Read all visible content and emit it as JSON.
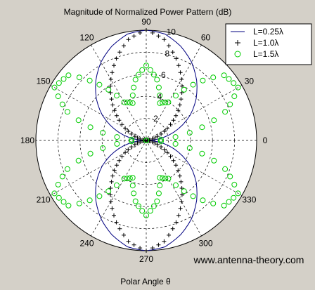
{
  "chart_data": {
    "type": "polar-line",
    "title": "Magnitude of Normalized Power Pattern (dB)",
    "xlabel": "Polar Angle θ",
    "watermark": "www.antenna-theory.com",
    "angle_ticks": [
      "0",
      "30",
      "60",
      "90",
      "120",
      "150",
      "180",
      "210",
      "240",
      "270",
      "300",
      "330"
    ],
    "radial_ticks": [
      "2",
      "4",
      "6",
      "8",
      "10"
    ],
    "rlim": [
      0,
      10
    ],
    "grid": true,
    "legend_position": "top-right",
    "colors": {
      "L025": "#000080",
      "L10": "#000000",
      "L15": "#00cc00",
      "background": "#d4d0c8",
      "plot_bg": "#ffffff"
    },
    "legend": [
      "L=0.25λ",
      "L=1.0λ",
      "L=1.5λ"
    ],
    "series": [
      {
        "name": "L=0.25λ",
        "style": "line",
        "theta_deg": [
          0,
          10,
          20,
          30,
          40,
          50,
          60,
          70,
          80,
          90,
          100,
          110,
          120,
          130,
          140,
          150,
          160,
          170,
          180
        ],
        "r": [
          0.0,
          1.6,
          3.1,
          4.6,
          5.9,
          7.1,
          8.2,
          9.1,
          9.8,
          10.0,
          9.8,
          9.1,
          8.2,
          7.1,
          5.9,
          4.6,
          3.1,
          1.6,
          0.0
        ],
        "symmetric_lower_half": true
      },
      {
        "name": "L=1.0λ",
        "style": "plus",
        "theta_deg": [
          0,
          10,
          20,
          30,
          40,
          50,
          60,
          70,
          80,
          90,
          100,
          110,
          120,
          130,
          140,
          150,
          160,
          170,
          180
        ],
        "r": [
          0.0,
          0.3,
          1.1,
          2.2,
          3.5,
          4.9,
          6.4,
          7.9,
          9.3,
          10.0,
          9.3,
          7.9,
          6.4,
          4.9,
          3.5,
          2.2,
          1.1,
          0.3,
          0.0
        ],
        "symmetric_lower_half": true
      },
      {
        "name": "L=1.5λ",
        "style": "circle",
        "theta_deg": [
          0,
          10,
          20,
          30,
          40,
          50,
          60,
          70,
          80,
          90,
          100,
          110,
          120,
          130,
          140,
          150,
          160,
          170,
          180
        ],
        "r": [
          0.0,
          4.0,
          7.6,
          9.6,
          9.2,
          6.6,
          4.0,
          3.6,
          5.6,
          6.8,
          5.6,
          3.6,
          4.0,
          6.6,
          9.2,
          9.6,
          7.6,
          4.0,
          0.0
        ],
        "symmetric_lower_half": true
      }
    ]
  }
}
